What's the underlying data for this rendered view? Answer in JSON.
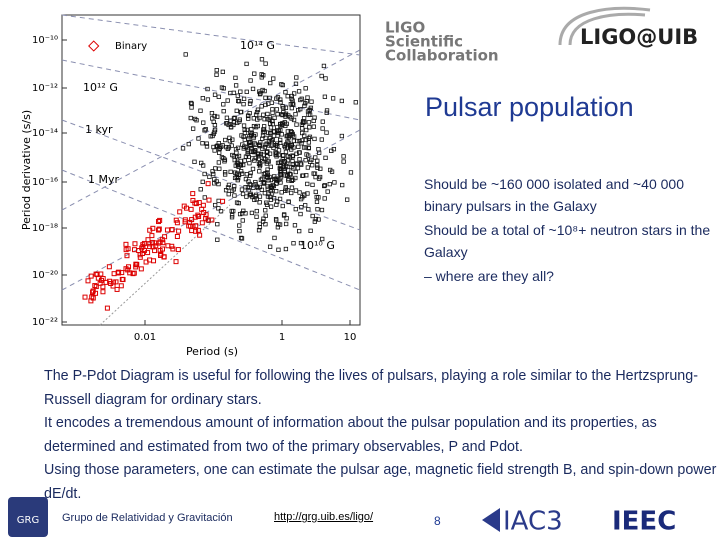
{
  "figure": {
    "y_label": "Period derivative (s/s)",
    "x_label": "Period (s)",
    "yticks": [
      "10⁻¹⁰",
      "10⁻¹²",
      "10⁻¹⁴",
      "10⁻¹⁶",
      "10⁻¹⁸",
      "10⁻²⁰",
      "10⁻²²"
    ],
    "xticks": [
      "0.01",
      "1",
      "10"
    ],
    "legend": "Binary",
    "annotations": [
      "10¹⁴ G",
      "10¹² G",
      "1 kyr",
      "1 Myr",
      "10¹⁰ G"
    ]
  },
  "logos": {
    "ligo": [
      "LIGO",
      "Scientific",
      "Collaboration"
    ],
    "uib": "LIGO@UIB"
  },
  "title": "Pulsar population",
  "bullets": [
    "Should be ~160 000 isolated and ~40 000 binary pulsars in the Galaxy",
    "Should be a total of ~10⁸+ neutron stars in the Galaxy",
    "– where are they all?"
  ],
  "body": [
    "The P-Pdot Diagram is useful for following the lives of pulsars, playing a role similar to the Hertzsprung-Russell diagram for ordinary stars.",
    "It encodes a tremendous amount of information about the pulsar population and its properties, as determined and estimated from two of the primary observables, P and Pdot.",
    "Using those parameters, one can estimate the pulsar age, magnetic field strength B, and spin-down power dE/dt."
  ],
  "footer": {
    "group": "Grupo de Relatividad y Gravitación",
    "url": "http://grg.uib.es/ligo/",
    "page": "8",
    "grg": "GRG",
    "iac": "IAC3",
    "ieec": "IEEC"
  }
}
